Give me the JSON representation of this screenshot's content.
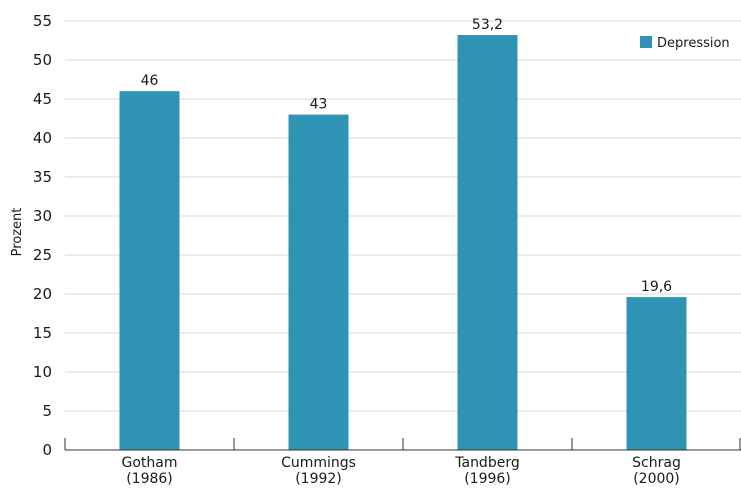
{
  "chart_data": {
    "type": "bar",
    "title": "",
    "xlabel": "",
    "ylabel": "Prozent",
    "ylim": [
      0,
      55
    ],
    "ytick_step": 5,
    "grid": true,
    "legend_placement": "top-right",
    "categories": [
      [
        "Gotham",
        "(1986)"
      ],
      [
        "Cummings",
        "(1992)"
      ],
      [
        "Tandberg",
        "(1996)"
      ],
      [
        "Schrag",
        "(2000)"
      ]
    ],
    "series": [
      {
        "name": "Depression",
        "color": "#2f93b3",
        "values": [
          46,
          43,
          53.2,
          19.6
        ],
        "labels": [
          "46",
          "43",
          "53,2",
          "19,6"
        ]
      }
    ]
  }
}
